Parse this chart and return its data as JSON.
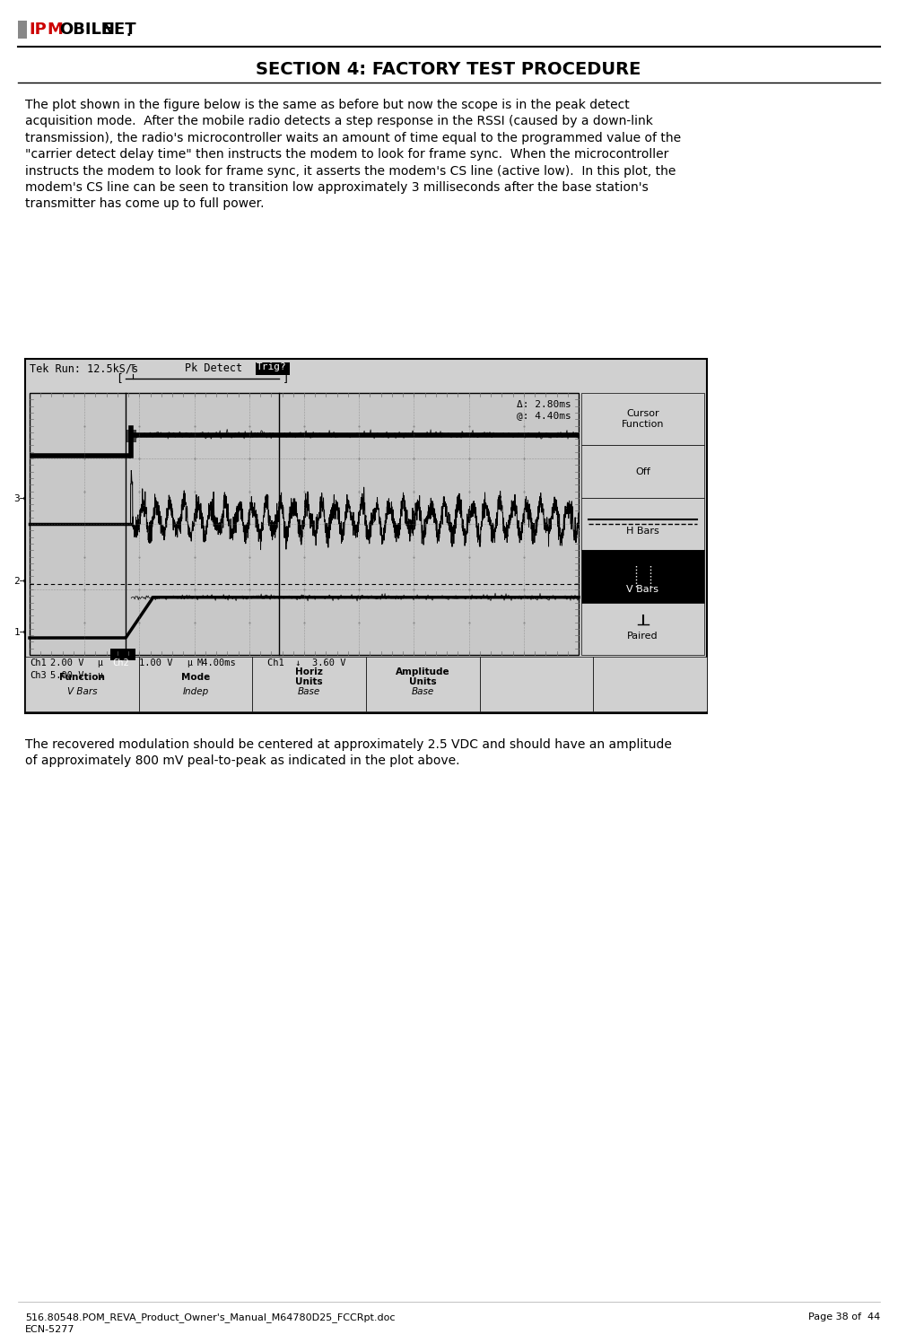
{
  "title": "SECTION 4: FACTORY TEST PROCEDURE",
  "body_text_1": "The plot shown in the figure below is the same as before but now the scope is in the peak detect\nacquisition mode.  After the mobile radio detects a step response in the RSSI (caused by a down-link\ntransmission), the radio's microcontroller waits an amount of time equal to the programmed value of the\n\"carrier detect delay time\" then instructs the modem to look for frame sync.  When the microcontroller\ninstructs the modem to look for frame sync, it asserts the modem's CS line (active low).  In this plot, the\nmodem's CS line can be seen to transition low approximately 3 milliseconds after the base station's\ntransmitter has come up to full power.",
  "body_text_2": "The recovered modulation should be centered at approximately 2.5 VDC and should have an amplitude\nof approximately 800 mV peal-to-peak as indicated in the plot above.",
  "footer_left": "516.80548.POM_REVA_Product_Owner's_Manual_M64780D25_FCCRpt.doc",
  "footer_right": "Page 38 of  44",
  "footer_ecn": "ECN-5277",
  "sidebar_items": [
    "Cursor\nFunction",
    "Off",
    "H Bars",
    "V Bars",
    "Paired"
  ],
  "sidebar_selected": "V Bars",
  "bottom_bar_labels": [
    "Function",
    "Mode",
    "Horiz\nUnits",
    "Amplitude\nUnits",
    "",
    ""
  ],
  "bottom_bar_values": [
    "V Bars",
    "Indep",
    "Base",
    "Base",
    "",
    ""
  ],
  "bg_color": "#ffffff",
  "scope_bg": "#c8c8c8",
  "scope_outer_bg": "#d0d0d0"
}
